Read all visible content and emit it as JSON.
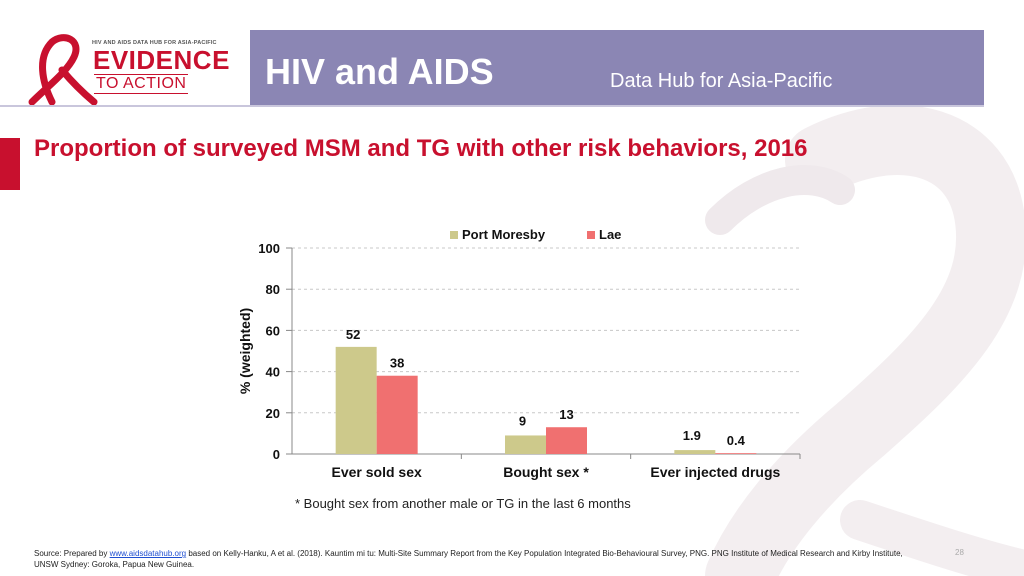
{
  "header": {
    "logo_small_text": "HIV AND AIDS DATA HUB FOR ASIA-PACIFIC",
    "logo_line1": "EVIDENCE",
    "logo_line2": "TO ACTION",
    "title": "HIV and AIDS",
    "subtitle": "Data Hub for Asia-Pacific"
  },
  "colors": {
    "header_bg": "#8b86b4",
    "accent_red": "#c8102e",
    "series_port_moresby": "#cdc98b",
    "series_lae": "#f07070"
  },
  "slide": {
    "title": "Proportion of surveyed MSM and TG with other risk behaviors, 2016"
  },
  "chart_data": {
    "type": "bar",
    "title": "Proportion of surveyed MSM and TG with other risk behaviors, 2016",
    "xlabel": "",
    "ylabel": "% (weighted)",
    "ylim": [
      0,
      100
    ],
    "yticks": [
      0,
      20,
      40,
      60,
      80,
      100
    ],
    "grid": true,
    "legend": "top",
    "categories": [
      "Ever sold sex",
      "Bought sex *",
      "Ever injected drugs"
    ],
    "series": [
      {
        "name": "Port Moresby",
        "values": [
          52,
          9,
          1.9
        ],
        "labels": [
          "52",
          "9",
          "1.9"
        ]
      },
      {
        "name": "Lae",
        "values": [
          38,
          13,
          0.4
        ],
        "labels": [
          "38",
          "13",
          "0.4"
        ]
      }
    ]
  },
  "footnote": "* Bought sex from another male or TG in the last 6 months",
  "source": {
    "prefix": "Source: Prepared by ",
    "link": "www.aidsdatahub.org",
    "suffix": " based on Kelly-Hanku, A et al. (2018). Kauntim mi tu: Multi-Site Summary Report from the Key Population Integrated Bio-Behavioural Survey, PNG. PNG Institute of Medical Research and Kirby Institute, UNSW Sydney: Goroka, Papua New Guinea."
  },
  "page_number": "28"
}
